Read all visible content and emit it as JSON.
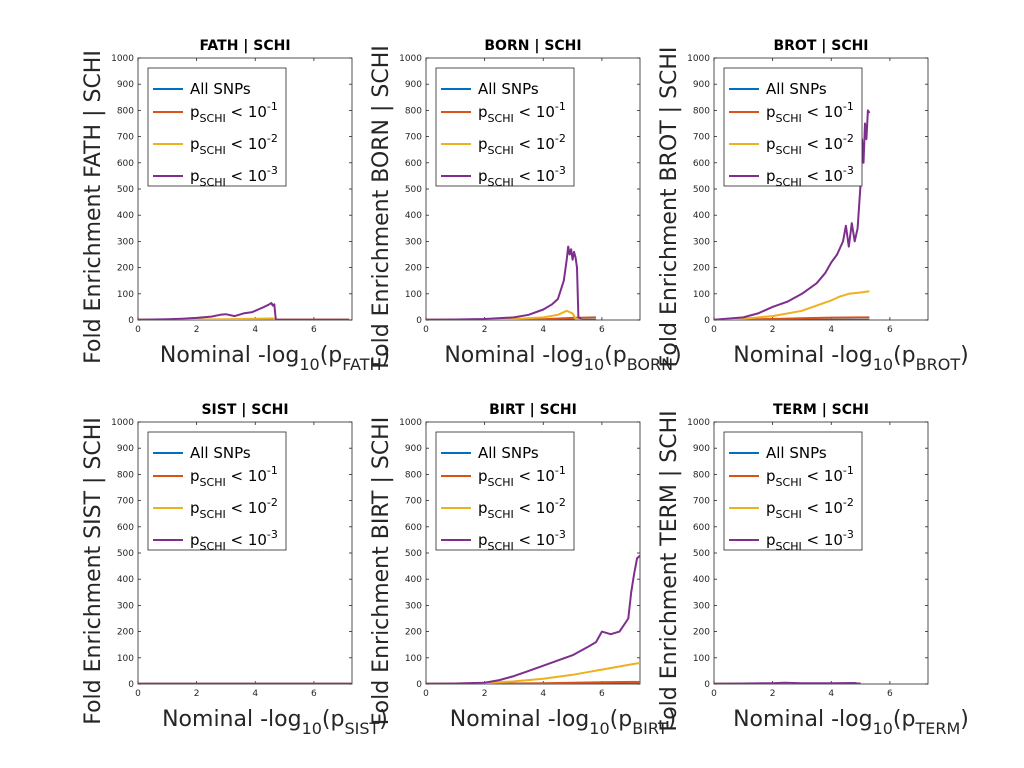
{
  "chart_data": [
    {
      "type": "line",
      "title": "FATH | SCHI",
      "xlabel": {
        "pre": "Nominal -log",
        "sub1": "10",
        "mid": "(p",
        "sub2": "FATH",
        "post": ")"
      },
      "ylabel": "Fold Enrichment FATH | SCHI",
      "xlim": [
        0,
        7.3
      ],
      "ylim": [
        0,
        1000
      ],
      "xticks": [
        0,
        2,
        4,
        6
      ],
      "yticks": [
        0,
        100,
        200,
        300,
        400,
        500,
        600,
        700,
        800,
        900,
        1000
      ],
      "legend_position": "top-left",
      "series": [
        {
          "name": "All SNPs",
          "color": "#0072BD",
          "x": [
            0,
            2,
            4,
            5,
            6,
            7.2
          ],
          "y": [
            1,
            1,
            1,
            1,
            1,
            1
          ]
        },
        {
          "name": "p<SCHI> < 10^-1",
          "color": "#D95319",
          "x": [
            0,
            2,
            4,
            4.6,
            5,
            7.2
          ],
          "y": [
            1,
            1.5,
            2,
            2,
            2,
            2
          ]
        },
        {
          "name": "p<SCHI> < 10^-2",
          "color": "#EDB120",
          "x": [
            0,
            2,
            3,
            4,
            4.6,
            4.7,
            7.2
          ],
          "y": [
            1,
            2,
            3,
            5,
            6,
            1,
            1
          ]
        },
        {
          "name": "p<SCHI> < 10^-3",
          "color": "#7E2F8E",
          "x": [
            0,
            0.5,
            1,
            1.5,
            2,
            2.5,
            2.8,
            3,
            3.3,
            3.6,
            3.9,
            4.1,
            4.3,
            4.45,
            4.55,
            4.6,
            4.65,
            4.7,
            7.2
          ],
          "y": [
            1,
            2,
            3,
            5,
            8,
            13,
            20,
            22,
            15,
            25,
            30,
            40,
            50,
            58,
            65,
            55,
            60,
            1,
            1
          ]
        }
      ]
    },
    {
      "type": "line",
      "title": "BORN | SCHI",
      "xlabel": {
        "pre": "Nominal -log",
        "sub1": "10",
        "mid": "(p",
        "sub2": "BORN",
        "post": ")"
      },
      "ylabel": "Fold Enrichment BORN | SCHI",
      "xlim": [
        0,
        7.3
      ],
      "ylim": [
        0,
        1000
      ],
      "xticks": [
        0,
        2,
        4,
        6
      ],
      "yticks": [
        0,
        100,
        200,
        300,
        400,
        500,
        600,
        700,
        800,
        900,
        1000
      ],
      "legend_position": "top-left",
      "series": [
        {
          "name": "All SNPs",
          "color": "#0072BD",
          "x": [
            0,
            2,
            4,
            5,
            5.8
          ],
          "y": [
            1,
            1,
            1,
            1,
            1
          ]
        },
        {
          "name": "p<SCHI> < 10^-1",
          "color": "#D95319",
          "x": [
            0,
            2,
            4,
            5,
            5.8
          ],
          "y": [
            1,
            1.5,
            3,
            8,
            10
          ]
        },
        {
          "name": "p<SCHI> < 10^-2",
          "color": "#EDB120",
          "x": [
            0,
            2,
            3,
            4,
            4.5,
            4.8,
            5,
            5.1,
            5.3
          ],
          "y": [
            1,
            2,
            4,
            10,
            20,
            35,
            25,
            5,
            5
          ]
        },
        {
          "name": "p<SCHI> < 10^-3",
          "color": "#7E2F8E",
          "x": [
            0,
            1,
            2,
            3,
            3.5,
            4,
            4.3,
            4.5,
            4.7,
            4.8,
            4.85,
            4.9,
            4.95,
            5,
            5.05,
            5.1,
            5.15,
            5.2,
            5.3
          ],
          "y": [
            1,
            2,
            4,
            10,
            20,
            40,
            60,
            80,
            150,
            230,
            280,
            250,
            270,
            230,
            260,
            240,
            200,
            10,
            5
          ]
        }
      ]
    },
    {
      "type": "line",
      "title": "BROT | SCHI",
      "xlabel": {
        "pre": "Nominal -log",
        "sub1": "10",
        "mid": "(p",
        "sub2": "BROT",
        "post": ")"
      },
      "ylabel": "Fold Enrichment BROT | SCHI",
      "xlim": [
        0,
        7.3
      ],
      "ylim": [
        0,
        1000
      ],
      "xticks": [
        0,
        2,
        4,
        6
      ],
      "yticks": [
        0,
        100,
        200,
        300,
        400,
        500,
        600,
        700,
        800,
        900,
        1000
      ],
      "legend_position": "top-left",
      "series": [
        {
          "name": "All SNPs",
          "color": "#0072BD",
          "x": [
            0,
            2,
            4,
            5.3
          ],
          "y": [
            1,
            1,
            1,
            1
          ]
        },
        {
          "name": "p<SCHI> < 10^-1",
          "color": "#D95319",
          "x": [
            0,
            1,
            2,
            3,
            4,
            5,
            5.3
          ],
          "y": [
            1,
            2,
            4,
            7,
            9,
            10,
            10
          ]
        },
        {
          "name": "p<SCHI> < 10^-2",
          "color": "#EDB120",
          "x": [
            0,
            1,
            2,
            3,
            3.5,
            4,
            4.3,
            4.6,
            5,
            5.3
          ],
          "y": [
            1,
            5,
            15,
            35,
            55,
            75,
            90,
            100,
            105,
            110
          ]
        },
        {
          "name": "p<SCHI> < 10^-3",
          "color": "#7E2F8E",
          "x": [
            0,
            1,
            1.5,
            2,
            2.5,
            3,
            3.5,
            3.8,
            4,
            4.2,
            4.4,
            4.5,
            4.6,
            4.7,
            4.8,
            4.9,
            5,
            5.05,
            5.1,
            5.15,
            5.2,
            5.25,
            5.3
          ],
          "y": [
            1,
            10,
            25,
            50,
            70,
            100,
            140,
            180,
            220,
            250,
            300,
            360,
            280,
            370,
            300,
            350,
            520,
            690,
            600,
            750,
            690,
            800,
            790
          ]
        }
      ]
    },
    {
      "type": "line",
      "title": "SIST | SCHI",
      "xlabel": {
        "pre": "Nominal -log",
        "sub1": "10",
        "mid": "(p",
        "sub2": "SIST",
        "post": ")"
      },
      "ylabel": "Fold Enrichment SIST | SCHI",
      "xlim": [
        0,
        7.3
      ],
      "ylim": [
        0,
        1000
      ],
      "xticks": [
        0,
        2,
        4,
        6
      ],
      "yticks": [
        0,
        100,
        200,
        300,
        400,
        500,
        600,
        700,
        800,
        900,
        1000
      ],
      "legend_position": "top-left",
      "series": [
        {
          "name": "All SNPs",
          "color": "#0072BD",
          "x": [
            0,
            2,
            4,
            6,
            7.3
          ],
          "y": [
            1,
            1,
            1,
            1,
            1
          ]
        },
        {
          "name": "p<SCHI> < 10^-1",
          "color": "#D95319",
          "x": [
            0,
            2,
            4,
            6,
            7.3
          ],
          "y": [
            1,
            1,
            1,
            1,
            1
          ]
        },
        {
          "name": "p<SCHI> < 10^-2",
          "color": "#EDB120",
          "x": [
            0,
            2,
            4,
            6,
            7.3
          ],
          "y": [
            1,
            1,
            1,
            1,
            1
          ]
        },
        {
          "name": "p<SCHI> < 10^-3",
          "color": "#7E2F8E",
          "x": [
            0,
            2,
            4,
            6,
            7.3
          ],
          "y": [
            1,
            1,
            1,
            1,
            1
          ]
        }
      ]
    },
    {
      "type": "line",
      "title": "BIRT | SCHI",
      "xlabel": {
        "pre": "Nominal -log",
        "sub1": "10",
        "mid": "(p",
        "sub2": "BIRT",
        "post": ")"
      },
      "ylabel": "Fold Enrichment BIRT | SCHI",
      "xlim": [
        0,
        7.3
      ],
      "ylim": [
        0,
        1000
      ],
      "xticks": [
        0,
        2,
        4,
        6
      ],
      "yticks": [
        0,
        100,
        200,
        300,
        400,
        500,
        600,
        700,
        800,
        900,
        1000
      ],
      "legend_position": "top-left",
      "series": [
        {
          "name": "All SNPs",
          "color": "#0072BD",
          "x": [
            0,
            2,
            4,
            6,
            7.3
          ],
          "y": [
            1,
            1,
            1,
            1,
            1
          ]
        },
        {
          "name": "p<SCHI> < 10^-1",
          "color": "#D95319",
          "x": [
            0,
            2,
            4,
            5,
            6,
            7.3
          ],
          "y": [
            1,
            1.5,
            3,
            5,
            7,
            8
          ]
        },
        {
          "name": "p<SCHI> < 10^-2",
          "color": "#EDB120",
          "x": [
            0,
            1,
            2,
            3,
            4,
            5,
            5.5,
            6,
            6.5,
            7,
            7.3
          ],
          "y": [
            1,
            2,
            4,
            10,
            20,
            35,
            45,
            55,
            65,
            75,
            80
          ]
        },
        {
          "name": "p<SCHI> < 10^-3",
          "color": "#7E2F8E",
          "x": [
            0,
            1,
            2,
            2.5,
            3,
            3.5,
            4,
            4.5,
            5,
            5.5,
            5.8,
            6,
            6.3,
            6.6,
            6.9,
            7,
            7.1,
            7.2,
            7.3
          ],
          "y": [
            1,
            2,
            5,
            15,
            30,
            50,
            70,
            90,
            110,
            140,
            160,
            200,
            190,
            200,
            250,
            350,
            420,
            480,
            490
          ]
        }
      ]
    },
    {
      "type": "line",
      "title": "TERM | SCHI",
      "xlabel": {
        "pre": "Nominal -log",
        "sub1": "10",
        "mid": "(p",
        "sub2": "TERM",
        "post": ")"
      },
      "ylabel": "Fold Enrichment TERM | SCHI",
      "xlim": [
        0,
        7.3
      ],
      "ylim": [
        0,
        1000
      ],
      "xticks": [
        0,
        2,
        4,
        6
      ],
      "yticks": [
        0,
        100,
        200,
        300,
        400,
        500,
        600,
        700,
        800,
        900,
        1000
      ],
      "legend_position": "top-left",
      "series": [
        {
          "name": "All SNPs",
          "color": "#0072BD",
          "x": [
            0,
            2,
            4,
            5
          ],
          "y": [
            1,
            1,
            1,
            1
          ]
        },
        {
          "name": "p<SCHI> < 10^-1",
          "color": "#D95319",
          "x": [
            0,
            2,
            4,
            5
          ],
          "y": [
            1,
            1.5,
            2,
            2
          ]
        },
        {
          "name": "p<SCHI> < 10^-2",
          "color": "#EDB120",
          "x": [
            0,
            2,
            4,
            5
          ],
          "y": [
            1,
            1.5,
            2,
            2
          ]
        },
        {
          "name": "p<SCHI> < 10^-3",
          "color": "#7E2F8E",
          "x": [
            0,
            1,
            2,
            2.4,
            3,
            4,
            4.8,
            4.9,
            5
          ],
          "y": [
            1,
            2,
            3,
            5,
            3,
            3,
            4,
            2,
            2
          ]
        }
      ]
    }
  ]
}
